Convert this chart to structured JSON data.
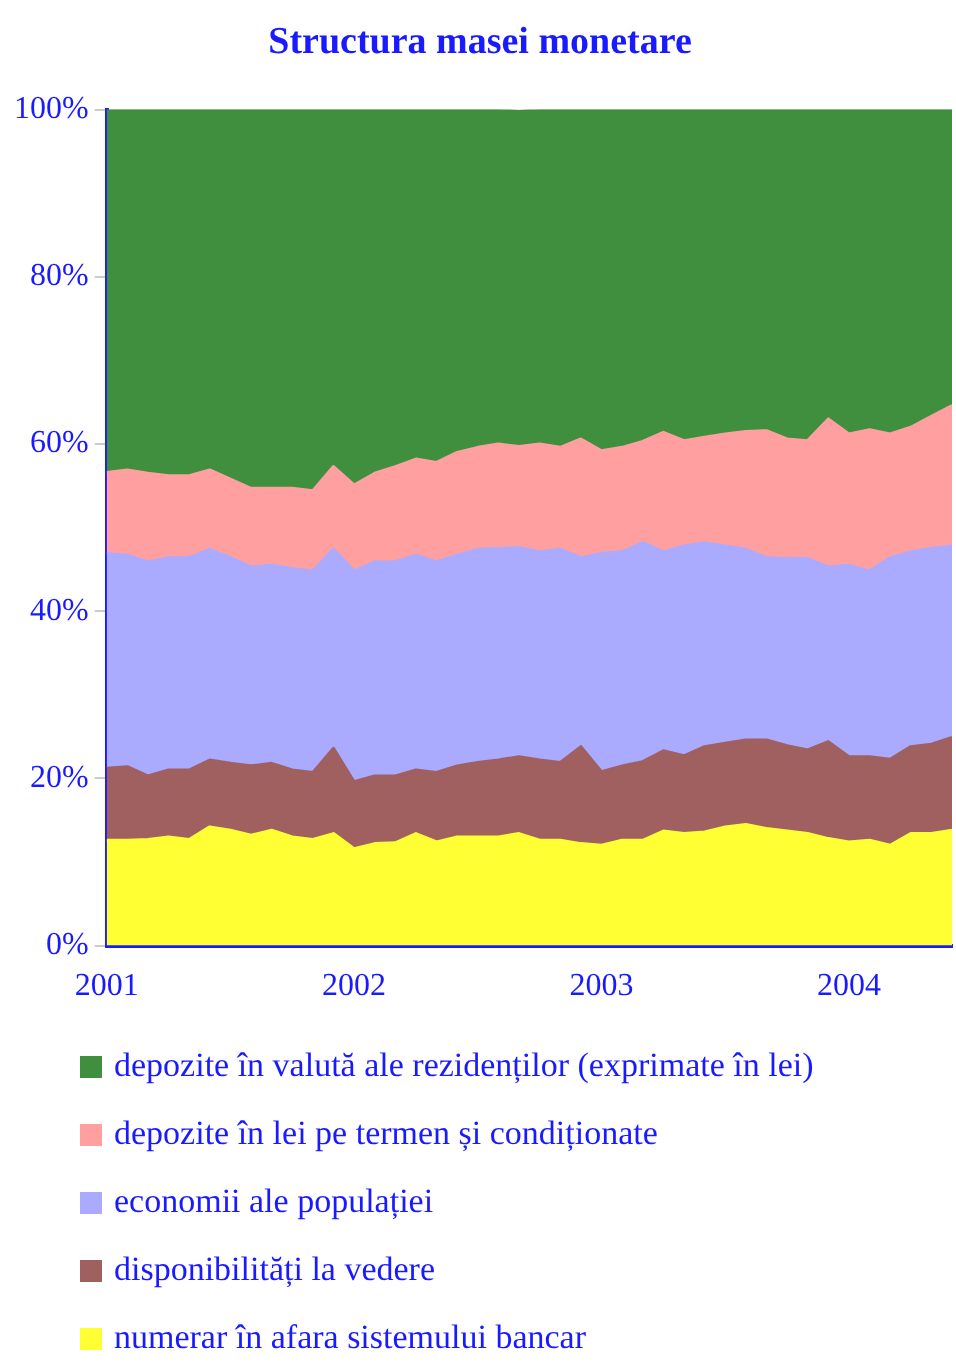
{
  "chart_data": {
    "type": "area",
    "stacked": true,
    "title": "Structura masei monetare",
    "x": [
      "2001-01",
      "2001-02",
      "2001-03",
      "2001-04",
      "2001-05",
      "2001-06",
      "2001-07",
      "2001-08",
      "2001-09",
      "2001-10",
      "2001-11",
      "2001-12",
      "2002-01",
      "2002-02",
      "2002-03",
      "2002-04",
      "2002-05",
      "2002-06",
      "2002-07",
      "2002-08",
      "2002-09",
      "2002-10",
      "2002-11",
      "2002-12",
      "2003-01",
      "2003-02",
      "2003-03",
      "2003-04",
      "2003-05",
      "2003-06",
      "2003-07",
      "2003-08",
      "2003-09",
      "2003-10",
      "2003-11",
      "2003-12",
      "2004-01",
      "2004-02",
      "2004-03",
      "2004-04",
      "2004-05",
      "2004-06"
    ],
    "series": [
      {
        "name": "numerar în afara sistemului bancar",
        "color": "#ffff33",
        "values": [
          12.6,
          12.6,
          12.7,
          13.0,
          12.7,
          14.2,
          13.8,
          13.2,
          13.8,
          13.0,
          12.7,
          13.4,
          11.6,
          12.2,
          12.3,
          13.4,
          12.4,
          13.0,
          13.0,
          13.0,
          13.4,
          12.6,
          12.6,
          12.2,
          12.0,
          12.6,
          12.6,
          13.7,
          13.4,
          13.6,
          14.2,
          14.5,
          14.0,
          13.7,
          13.4,
          12.8,
          12.4,
          12.6,
          12.0,
          13.4,
          13.4,
          13.8
        ]
      },
      {
        "name": "disponibilități la vedere",
        "color": "#a06060",
        "values": [
          8.6,
          8.8,
          7.6,
          8.0,
          8.3,
          8.0,
          8.0,
          8.3,
          8.0,
          8.0,
          8.0,
          10.2,
          8.0,
          8.1,
          8.0,
          7.6,
          8.3,
          8.5,
          8.9,
          9.2,
          9.2,
          9.6,
          9.3,
          11.6,
          8.8,
          8.9,
          9.4,
          9.6,
          9.3,
          10.2,
          10.0,
          10.1,
          10.6,
          10.2,
          10.0,
          11.6,
          10.2,
          10.0,
          10.3,
          10.4,
          10.7,
          11.1
        ]
      },
      {
        "name": "economii ale populației",
        "color": "#aaaaff",
        "values": [
          25.7,
          25.3,
          25.6,
          25.4,
          25.4,
          25.2,
          24.6,
          23.8,
          23.7,
          24.1,
          24.1,
          23.8,
          25.2,
          25.6,
          25.6,
          25.7,
          25.2,
          25.2,
          25.5,
          25.3,
          25.0,
          24.9,
          25.5,
          22.6,
          26.1,
          25.6,
          26.2,
          23.8,
          25.1,
          24.4,
          23.6,
          22.8,
          21.8,
          22.4,
          22.9,
          20.9,
          22.9,
          22.2,
          24.1,
          23.3,
          23.4,
          22.9
        ]
      },
      {
        "name": "depozite în lei pe termen și condiționate",
        "color": "#ff9f9f",
        "values": [
          9.7,
          10.2,
          10.6,
          9.8,
          9.8,
          9.5,
          9.4,
          9.4,
          9.2,
          9.6,
          9.6,
          9.9,
          10.3,
          10.6,
          11.4,
          11.5,
          11.9,
          12.3,
          12.2,
          12.5,
          12.1,
          12.9,
          12.2,
          14.2,
          12.3,
          12.5,
          12.1,
          14.3,
          12.6,
          12.6,
          13.4,
          14.1,
          15.2,
          14.3,
          14.1,
          17.7,
          15.7,
          16.9,
          14.8,
          14.9,
          15.8,
          16.8
        ]
      },
      {
        "name": "depozite în valută ale rezidenților (exprimate în lei)",
        "color": "#3f8f3f",
        "values": [
          43.4,
          43.1,
          43.5,
          43.8,
          43.8,
          43.1,
          44.2,
          45.3,
          45.3,
          45.3,
          45.6,
          42.7,
          44.9,
          43.5,
          42.7,
          41.8,
          42.2,
          41.0,
          40.4,
          40.0,
          40.1,
          40.0,
          40.4,
          39.4,
          40.8,
          40.4,
          39.7,
          38.6,
          39.6,
          39.2,
          38.8,
          38.5,
          38.4,
          39.4,
          39.6,
          37.0,
          38.8,
          38.3,
          38.8,
          38.0,
          36.7,
          35.4
        ]
      }
    ],
    "xlim": [
      "2001-01",
      "2004-06"
    ],
    "xticks": [
      "2001",
      "2002",
      "2003",
      "2004"
    ],
    "ylim": [
      0,
      100
    ],
    "yticks": [
      {
        "value": 0,
        "label": "0%"
      },
      {
        "value": 20,
        "label": "20%"
      },
      {
        "value": 40,
        "label": "40%"
      },
      {
        "value": 60,
        "label": "60%"
      },
      {
        "value": 80,
        "label": "80%"
      },
      {
        "value": 100,
        "label": "100%"
      }
    ],
    "grid": false,
    "legend": "bottom"
  }
}
